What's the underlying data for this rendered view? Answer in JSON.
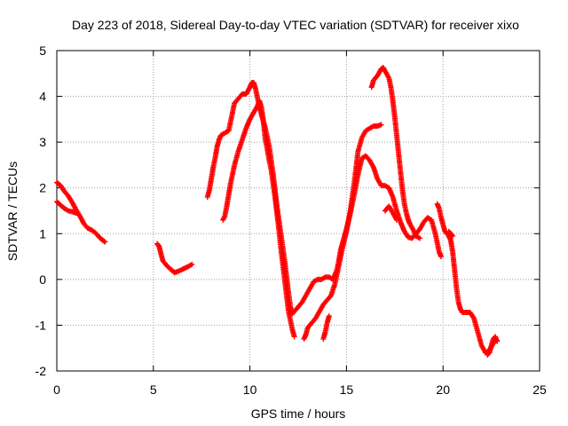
{
  "chart_data": {
    "type": "scatter",
    "title": "Day 223 of 2018, Sidereal Day-to-day VTEC variation (SDTVAR) for receiver xixo",
    "xlabel": "GPS time / hours",
    "ylabel": "SDTVAR / TECUs",
    "xlim": [
      0,
      25
    ],
    "ylim": [
      -2,
      5
    ],
    "xticks": [
      0,
      5,
      10,
      15,
      20,
      25
    ],
    "yticks": [
      -2,
      -1,
      0,
      1,
      2,
      3,
      4,
      5
    ],
    "xtick_labels": [
      "0",
      "5",
      "10",
      "15",
      "20",
      "25"
    ],
    "ytick_labels": [
      "-2",
      "-1",
      "0",
      "1",
      "2",
      "3",
      "4",
      "5"
    ],
    "grid": true,
    "marker": "plus",
    "series_color": "#ff0000",
    "segments": [
      {
        "name": "arc-a",
        "points": [
          [
            0.0,
            2.12
          ],
          [
            0.2,
            2.05
          ],
          [
            0.4,
            1.92
          ],
          [
            0.6,
            1.82
          ],
          [
            0.8,
            1.68
          ],
          [
            1.0,
            1.52
          ],
          [
            1.2,
            1.38
          ],
          [
            1.4,
            1.22
          ],
          [
            1.6,
            1.12
          ],
          [
            1.8,
            1.08
          ],
          [
            2.0,
            1.02
          ],
          [
            2.2,
            0.92
          ],
          [
            2.4,
            0.85
          ],
          [
            2.5,
            0.82
          ]
        ]
      },
      {
        "name": "arc-b",
        "points": [
          [
            0.0,
            1.7
          ],
          [
            0.2,
            1.62
          ],
          [
            0.4,
            1.55
          ],
          [
            0.6,
            1.5
          ],
          [
            0.8,
            1.48
          ],
          [
            1.0,
            1.45
          ]
        ]
      },
      {
        "name": "arc-c",
        "points": [
          [
            5.2,
            0.78
          ],
          [
            5.3,
            0.72
          ],
          [
            5.4,
            0.55
          ],
          [
            5.5,
            0.4
          ],
          [
            5.7,
            0.3
          ],
          [
            5.9,
            0.22
          ],
          [
            6.1,
            0.15
          ],
          [
            6.3,
            0.18
          ],
          [
            6.5,
            0.22
          ],
          [
            6.8,
            0.28
          ],
          [
            7.0,
            0.33
          ]
        ]
      },
      {
        "name": "arc-d",
        "points": [
          [
            7.8,
            1.8
          ],
          [
            7.9,
            1.95
          ],
          [
            8.0,
            2.2
          ],
          [
            8.1,
            2.45
          ],
          [
            8.2,
            2.65
          ],
          [
            8.3,
            2.9
          ],
          [
            8.4,
            3.05
          ],
          [
            8.5,
            3.15
          ],
          [
            8.7,
            3.2
          ],
          [
            8.9,
            3.25
          ],
          [
            9.0,
            3.45
          ],
          [
            9.1,
            3.65
          ],
          [
            9.2,
            3.85
          ],
          [
            9.4,
            3.95
          ],
          [
            9.6,
            4.05
          ],
          [
            9.8,
            4.05
          ],
          [
            9.9,
            4.12
          ],
          [
            10.0,
            4.2
          ],
          [
            10.1,
            4.3
          ],
          [
            10.2,
            4.3
          ],
          [
            10.3,
            4.15
          ],
          [
            10.4,
            3.95
          ],
          [
            10.5,
            3.75
          ],
          [
            10.6,
            3.6
          ],
          [
            10.7,
            3.45
          ],
          [
            10.8,
            3.3
          ],
          [
            10.9,
            3.1
          ],
          [
            11.0,
            2.9
          ],
          [
            11.1,
            2.6
          ],
          [
            11.2,
            2.3
          ],
          [
            11.3,
            1.95
          ],
          [
            11.4,
            1.6
          ],
          [
            11.5,
            1.3
          ],
          [
            11.6,
            1.0
          ],
          [
            11.7,
            0.7
          ],
          [
            11.8,
            0.4
          ],
          [
            11.9,
            0.05
          ],
          [
            12.0,
            -0.3
          ],
          [
            12.1,
            -0.6
          ],
          [
            12.2,
            -0.75
          ],
          [
            12.3,
            -0.7
          ],
          [
            12.5,
            -0.6
          ],
          [
            12.7,
            -0.5
          ],
          [
            12.9,
            -0.35
          ],
          [
            13.1,
            -0.2
          ],
          [
            13.3,
            -0.05
          ],
          [
            13.5,
            0.0
          ],
          [
            13.7,
            0.0
          ],
          [
            13.9,
            0.05
          ],
          [
            14.1,
            0.05
          ],
          [
            14.3,
            0.0
          ],
          [
            14.5,
            0.2
          ],
          [
            14.6,
            0.4
          ],
          [
            14.7,
            0.65
          ],
          [
            14.8,
            0.8
          ],
          [
            14.9,
            0.95
          ],
          [
            15.0,
            1.1
          ],
          [
            15.2,
            1.45
          ],
          [
            15.4,
            1.85
          ],
          [
            15.6,
            2.3
          ],
          [
            15.8,
            2.65
          ],
          [
            16.0,
            2.7
          ],
          [
            16.2,
            2.6
          ],
          [
            16.4,
            2.45
          ],
          [
            16.6,
            2.2
          ],
          [
            16.8,
            2.05
          ],
          [
            17.0,
            2.05
          ],
          [
            17.2,
            2.0
          ],
          [
            17.4,
            1.8
          ],
          [
            17.6,
            1.5
          ],
          [
            17.8,
            1.25
          ],
          [
            18.0,
            1.05
          ],
          [
            18.2,
            0.92
          ],
          [
            18.4,
            0.9
          ],
          [
            18.6,
            1.0
          ],
          [
            18.8,
            1.1
          ],
          [
            19.0,
            1.25
          ],
          [
            19.2,
            1.35
          ],
          [
            19.4,
            1.3
          ],
          [
            19.6,
            1.0
          ],
          [
            19.8,
            0.6
          ],
          [
            19.9,
            0.5
          ]
        ]
      },
      {
        "name": "arc-e",
        "points": [
          [
            8.6,
            1.3
          ],
          [
            8.7,
            1.38
          ],
          [
            8.8,
            1.6
          ],
          [
            8.9,
            1.85
          ],
          [
            9.0,
            2.1
          ],
          [
            9.1,
            2.3
          ],
          [
            9.2,
            2.5
          ],
          [
            9.4,
            2.8
          ],
          [
            9.6,
            3.05
          ],
          [
            9.8,
            3.3
          ],
          [
            10.0,
            3.5
          ],
          [
            10.2,
            3.65
          ],
          [
            10.4,
            3.8
          ],
          [
            10.5,
            3.9
          ],
          [
            10.6,
            3.75
          ],
          [
            10.7,
            3.45
          ],
          [
            10.8,
            3.05
          ],
          [
            10.9,
            2.85
          ],
          [
            11.0,
            2.6
          ],
          [
            11.1,
            2.4
          ],
          [
            11.2,
            2.1
          ],
          [
            11.3,
            1.8
          ],
          [
            11.4,
            1.45
          ],
          [
            11.5,
            1.1
          ],
          [
            11.6,
            0.7
          ],
          [
            11.7,
            0.35
          ],
          [
            11.8,
            0.0
          ],
          [
            11.9,
            -0.35
          ],
          [
            12.0,
            -0.7
          ],
          [
            12.1,
            -0.9
          ],
          [
            12.2,
            -1.1
          ],
          [
            12.3,
            -1.25
          ]
        ]
      },
      {
        "name": "arc-f",
        "points": [
          [
            12.8,
            -1.3
          ],
          [
            12.9,
            -1.2
          ],
          [
            13.0,
            -1.05
          ],
          [
            13.2,
            -0.95
          ],
          [
            13.4,
            -0.85
          ],
          [
            13.6,
            -0.7
          ],
          [
            13.8,
            -0.55
          ],
          [
            14.0,
            -0.45
          ],
          [
            14.2,
            -0.35
          ],
          [
            14.4,
            -0.1
          ],
          [
            14.6,
            0.3
          ],
          [
            14.8,
            0.7
          ],
          [
            15.0,
            1.05
          ],
          [
            15.2,
            1.5
          ],
          [
            15.4,
            2.1
          ],
          [
            15.6,
            2.8
          ],
          [
            15.8,
            3.1
          ],
          [
            16.0,
            3.25
          ],
          [
            16.2,
            3.3
          ],
          [
            16.4,
            3.35
          ],
          [
            16.6,
            3.35
          ],
          [
            16.8,
            3.38
          ]
        ]
      },
      {
        "name": "arc-g",
        "points": [
          [
            13.8,
            -1.3
          ],
          [
            13.9,
            -1.15
          ],
          [
            14.0,
            -0.95
          ],
          [
            14.1,
            -0.8
          ]
        ]
      },
      {
        "name": "arc-h",
        "points": [
          [
            16.3,
            4.2
          ],
          [
            16.4,
            4.35
          ],
          [
            16.6,
            4.45
          ],
          [
            16.8,
            4.6
          ],
          [
            16.9,
            4.63
          ],
          [
            17.0,
            4.55
          ],
          [
            17.2,
            4.4
          ],
          [
            17.3,
            4.2
          ],
          [
            17.4,
            3.9
          ],
          [
            17.5,
            3.55
          ],
          [
            17.6,
            3.15
          ],
          [
            17.7,
            2.75
          ],
          [
            17.8,
            2.35
          ],
          [
            17.9,
            1.95
          ],
          [
            18.0,
            1.65
          ],
          [
            18.1,
            1.45
          ],
          [
            18.2,
            1.3
          ],
          [
            18.3,
            1.2
          ],
          [
            18.5,
            1.05
          ],
          [
            18.6,
            0.95
          ],
          [
            18.8,
            0.9
          ]
        ]
      },
      {
        "name": "arc-i",
        "points": [
          [
            17.0,
            1.5
          ],
          [
            17.2,
            1.6
          ],
          [
            17.4,
            1.45
          ],
          [
            17.6,
            1.3
          ]
        ]
      },
      {
        "name": "arc-j",
        "points": [
          [
            19.7,
            1.65
          ],
          [
            19.8,
            1.55
          ],
          [
            19.9,
            1.35
          ],
          [
            20.0,
            1.2
          ],
          [
            20.1,
            1.05
          ],
          [
            20.2,
            1.0
          ],
          [
            20.3,
            0.95
          ],
          [
            20.4,
            0.85
          ],
          [
            20.5,
            0.6
          ],
          [
            20.6,
            0.2
          ],
          [
            20.7,
            -0.2
          ],
          [
            20.8,
            -0.5
          ],
          [
            20.9,
            -0.65
          ],
          [
            21.0,
            -0.72
          ],
          [
            21.2,
            -0.72
          ],
          [
            21.4,
            -0.72
          ],
          [
            21.6,
            -0.85
          ],
          [
            21.8,
            -1.15
          ],
          [
            22.0,
            -1.45
          ],
          [
            22.2,
            -1.6
          ],
          [
            22.4,
            -1.55
          ],
          [
            22.6,
            -1.4
          ],
          [
            22.7,
            -1.3
          ],
          [
            22.8,
            -1.35
          ]
        ]
      },
      {
        "name": "arc-k",
        "points": [
          [
            20.3,
            1.05
          ],
          [
            20.4,
            1.0
          ],
          [
            20.5,
            0.95
          ]
        ]
      },
      {
        "name": "arc-l",
        "points": [
          [
            22.3,
            -1.65
          ],
          [
            22.4,
            -1.6
          ],
          [
            22.5,
            -1.45
          ],
          [
            22.6,
            -1.3
          ],
          [
            22.7,
            -1.25
          ],
          [
            22.8,
            -1.35
          ]
        ]
      }
    ]
  }
}
